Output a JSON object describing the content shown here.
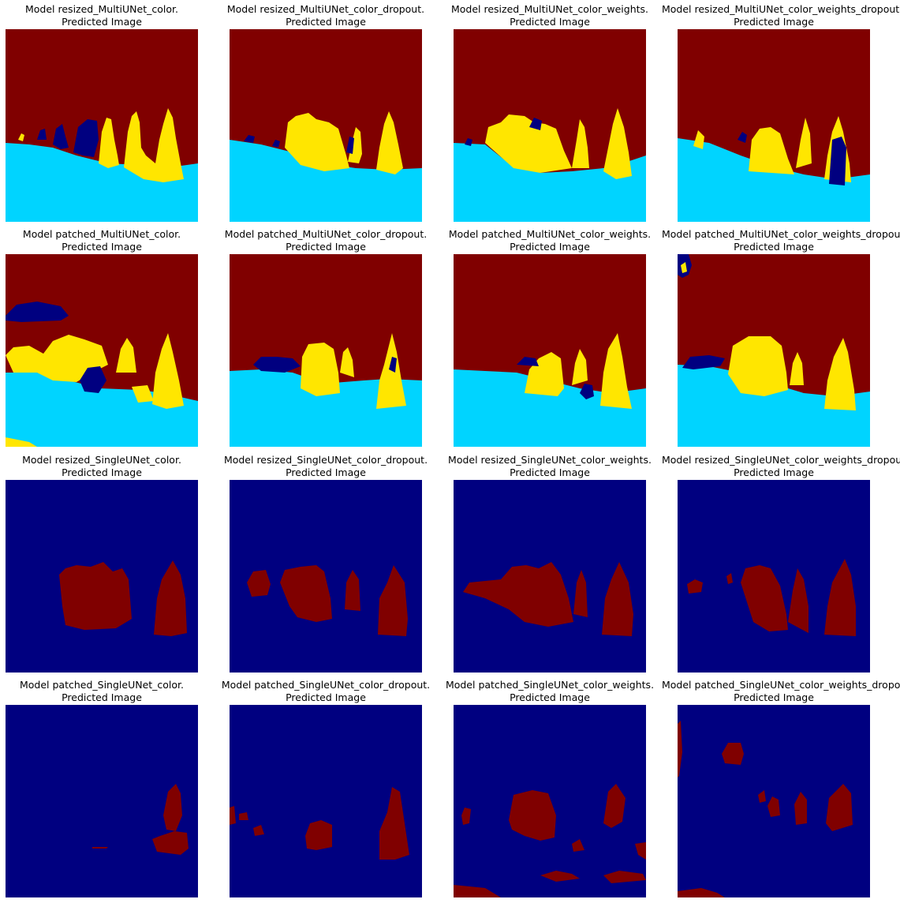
{
  "colors": {
    "dark_red": "#800000",
    "yellow": "#ffe600",
    "cyan": "#00d4ff",
    "navy": "#000080"
  },
  "panels": [
    {
      "model": "Model resized_MultiUNet_color.",
      "subtitle": "Predicted Image"
    },
    {
      "model": "Model resized_MultiUNet_color_dropout.",
      "subtitle": "Predicted Image"
    },
    {
      "model": "Model resized_MultiUNet_color_weights.",
      "subtitle": "Predicted Image"
    },
    {
      "model": "Model resized_MultiUNet_color_weights_dropout.",
      "subtitle": "Predicted Image"
    },
    {
      "model": "Model patched_MultiUNet_color.",
      "subtitle": "Predicted Image"
    },
    {
      "model": "Model patched_MultiUNet_color_dropout.",
      "subtitle": "Predicted Image"
    },
    {
      "model": "Model patched_MultiUNet_color_weights.",
      "subtitle": "Predicted Image"
    },
    {
      "model": "Model patched_MultiUNet_color_weights_dropout.",
      "subtitle": "Predicted Image"
    },
    {
      "model": "Model resized_SingleUNet_color.",
      "subtitle": "Predicted Image"
    },
    {
      "model": "Model resized_SingleUNet_color_dropout.",
      "subtitle": "Predicted Image"
    },
    {
      "model": "Model resized_SingleUNet_color_weights.",
      "subtitle": "Predicted Image"
    },
    {
      "model": "Model resized_SingleUNet_color_weights_dropout.",
      "subtitle": "Predicted Image"
    },
    {
      "model": "Model patched_SingleUNet_color.",
      "subtitle": "Predicted Image"
    },
    {
      "model": "Model patched_SingleUNet_color_dropout.",
      "subtitle": "Predicted Image"
    },
    {
      "model": "Model patched_SingleUNet_color_weights.",
      "subtitle": "Predicted Image"
    },
    {
      "model": "Model patched_SingleUNet_color_weights_dropout.",
      "subtitle": "Predicted Image"
    }
  ]
}
